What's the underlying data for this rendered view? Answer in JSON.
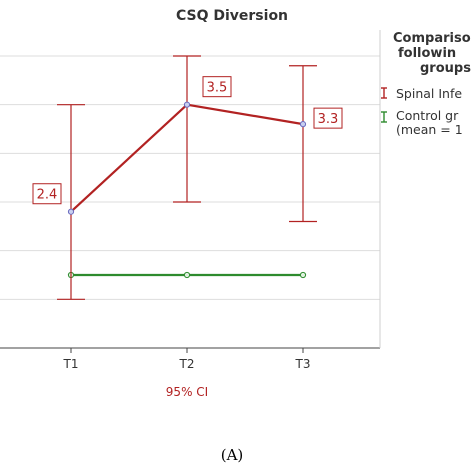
{
  "chart_data": {
    "type": "line",
    "title": "CSQ Diversion",
    "xlabel": "95% CI",
    "categories": [
      "T1",
      "T2",
      "T3"
    ],
    "ylim": [
      1.0,
      4.0
    ],
    "grid": true,
    "legend": {
      "placement": "right",
      "title_lines": [
        "Compariso",
        "followin",
        "groups"
      ],
      "entries": [
        {
          "label_lines": [
            "Spinal Infe"
          ],
          "color": "#b22222"
        },
        {
          "label_lines": [
            "Control gr",
            "(mean = 1"
          ],
          "color": "#2e8b2e"
        }
      ]
    },
    "series": [
      {
        "name": "Spinal Infe",
        "color": "#b22222",
        "values": [
          2.4,
          3.5,
          3.3
        ],
        "ci_low": [
          1.5,
          2.5,
          2.3
        ],
        "ci_high": [
          3.5,
          4.0,
          3.9
        ],
        "data_labels": [
          "2.4",
          "3.5",
          "3.3"
        ]
      },
      {
        "name": "Control gr",
        "color": "#2e8b2e",
        "values": [
          1.75,
          1.75,
          1.75
        ]
      }
    ]
  },
  "caption": "(A)"
}
